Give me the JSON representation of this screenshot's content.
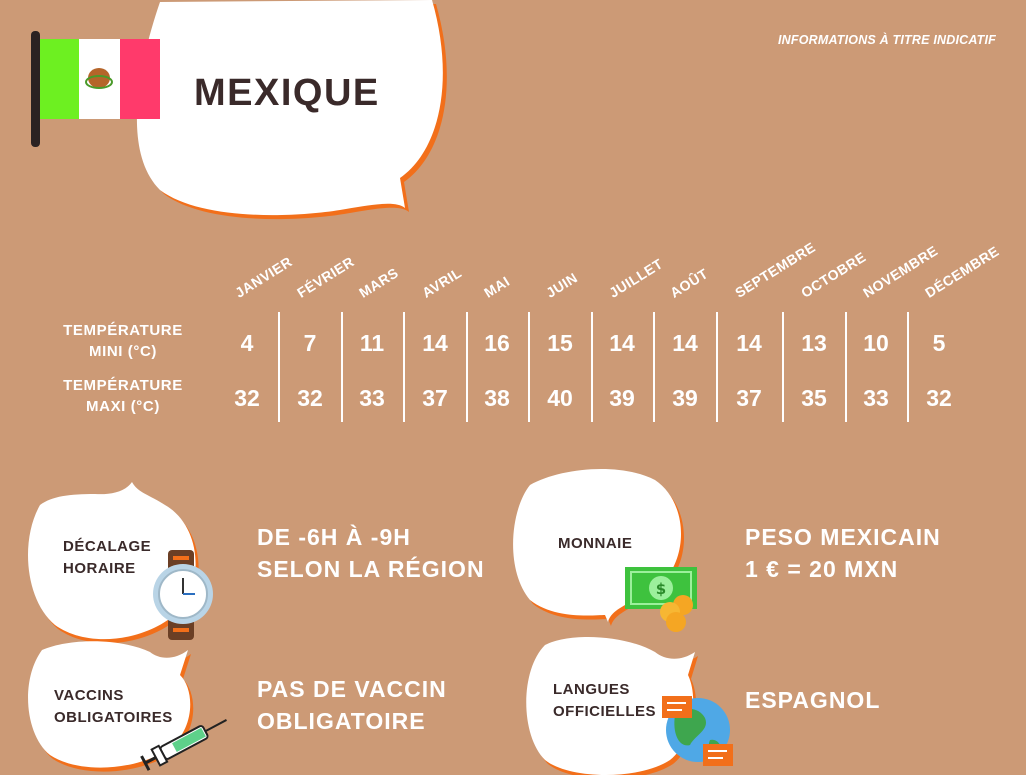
{
  "header": {
    "disclaimer": "INFORMATIONS À TITRE INDICATIF",
    "country": "MEXIQUE"
  },
  "colors": {
    "background": "#cc9a76",
    "bubble": "#ffffff",
    "bubble_shadow": "#f26f1a",
    "text_dark": "#3a2a2a",
    "flag_green": "#6df021",
    "flag_white": "#ffffff",
    "flag_red": "#ff3a6b"
  },
  "climate": {
    "months": [
      "JANVIER",
      "FÉVRIER",
      "MARS",
      "AVRIL",
      "MAI",
      "JUIN",
      "JUILLET",
      "AOÛT",
      "SEPTEMBRE",
      "OCTOBRE",
      "NOVEMBRE",
      "DÉCEMBRE"
    ],
    "min_label": [
      "TEMPÉRATURE",
      "MINI (°C)"
    ],
    "max_label": [
      "TEMPÉRATURE",
      "MAXI (°C)"
    ],
    "min": [
      "4",
      "7",
      "11",
      "14",
      "16",
      "15",
      "14",
      "14",
      "14",
      "13",
      "10",
      "5"
    ],
    "max": [
      "32",
      "32",
      "33",
      "37",
      "38",
      "40",
      "39",
      "39",
      "37",
      "35",
      "33",
      "32"
    ]
  },
  "blocks": {
    "time": {
      "label": [
        "DÉCALAGE",
        "HORAIRE"
      ],
      "value": [
        "DE -6H À -9H",
        "SELON LA RÉGION"
      ],
      "icon": "watch-icon"
    },
    "currency": {
      "label": [
        "MONNAIE"
      ],
      "value": [
        "PESO MEXICAIN",
        "1 € = 20 MXN"
      ],
      "icon": "money-icon"
    },
    "vaccines": {
      "label": [
        "VACCINS",
        "OBLIGATOIRES"
      ],
      "value": [
        "PAS DE VACCIN",
        "OBLIGATOIRE"
      ],
      "icon": "syringe-icon"
    },
    "languages": {
      "label": [
        "LANGUES",
        "OFFICIELLES"
      ],
      "value": [
        "ESPAGNOL"
      ],
      "icon": "globe-chat-icon"
    }
  }
}
